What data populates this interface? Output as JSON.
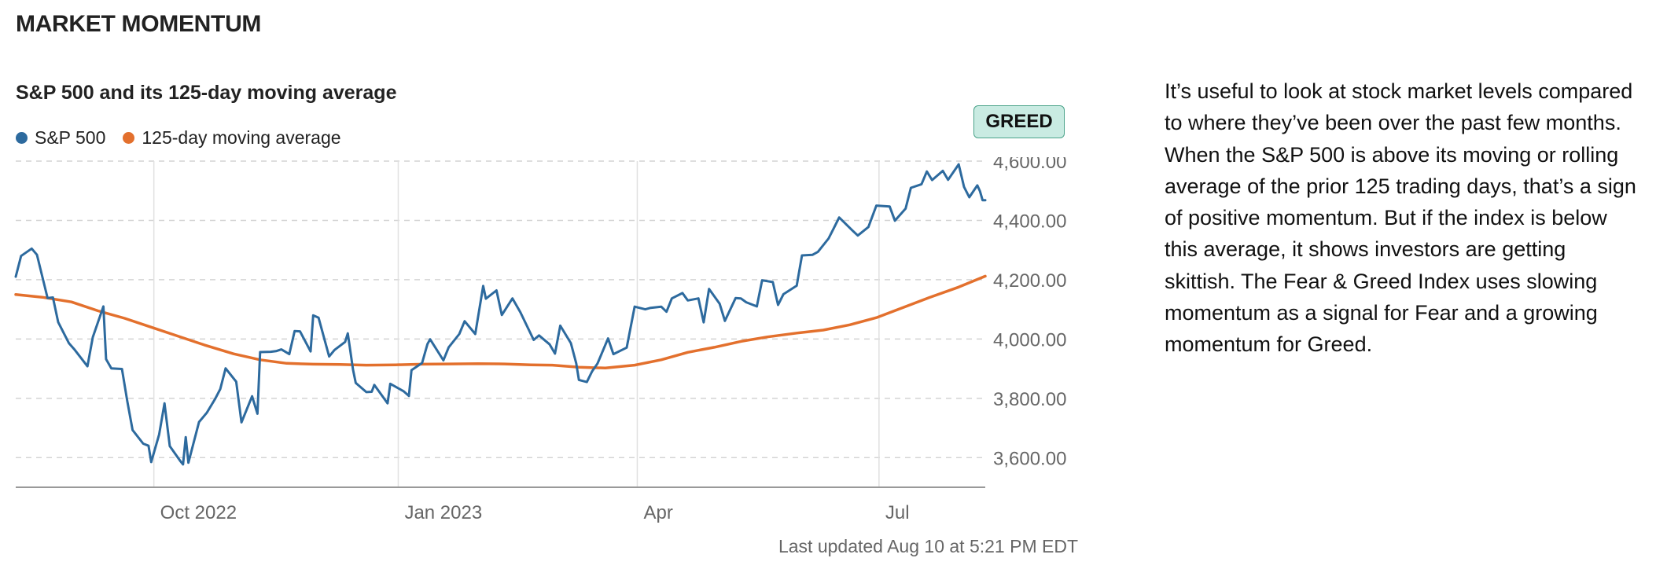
{
  "section_title": "MARKET MOMENTUM",
  "badge": {
    "label": "GREED",
    "color": "#c9ebe2"
  },
  "last_updated": "Last updated Aug 10 at 5:21 PM EDT",
  "description": "It’s useful to look at stock market levels compared to where they’ve been over the past few months. When the S&P 500 is above its moving or rolling average of the prior 125 trading days, that’s a sign of positive momentum. But if the index is below this average, it shows investors are getting skittish. The Fear & Greed Index uses slowing momentum as a signal for Fear and a growing momentum for Greed.",
  "chart_data": {
    "type": "line",
    "title": "S&P 500 and its 125-day moving average",
    "ylim": [
      3500,
      4600
    ],
    "y_ticks": [
      3600,
      3800,
      4000,
      4200,
      4400,
      4600
    ],
    "y_tick_labels": [
      "3,600.00",
      "3,800.00",
      "4,000.00",
      "4,200.00",
      "4,400.00",
      "4,600.00"
    ],
    "x_range": [
      "2022-08-10",
      "2023-08-10"
    ],
    "x_ticks": [
      {
        "date": "2022-10-01",
        "label": "Oct 2022"
      },
      {
        "date": "2023-01-01",
        "label": "Jan 2023"
      },
      {
        "date": "2023-04-01",
        "label": "Apr"
      },
      {
        "date": "2023-07-01",
        "label": "Jul"
      }
    ],
    "grid": true,
    "legend": "top-left",
    "series": [
      {
        "name": "S&P 500",
        "color": "#2d6a9e",
        "points": [
          [
            "2022-08-10",
            4210
          ],
          [
            "2022-08-12",
            4280
          ],
          [
            "2022-08-16",
            4305
          ],
          [
            "2022-08-18",
            4284
          ],
          [
            "2022-08-22",
            4138
          ],
          [
            "2022-08-24",
            4140
          ],
          [
            "2022-08-26",
            4057
          ],
          [
            "2022-08-30",
            3986
          ],
          [
            "2022-09-01",
            3966
          ],
          [
            "2022-09-06",
            3908
          ],
          [
            "2022-09-08",
            4006
          ],
          [
            "2022-09-12",
            4110
          ],
          [
            "2022-09-13",
            3932
          ],
          [
            "2022-09-15",
            3901
          ],
          [
            "2022-09-19",
            3899
          ],
          [
            "2022-09-21",
            3790
          ],
          [
            "2022-09-23",
            3693
          ],
          [
            "2022-09-27",
            3647
          ],
          [
            "2022-09-29",
            3640
          ],
          [
            "2022-09-30",
            3585
          ],
          [
            "2022-10-03",
            3678
          ],
          [
            "2022-10-05",
            3783
          ],
          [
            "2022-10-07",
            3639
          ],
          [
            "2022-10-11",
            3588
          ],
          [
            "2022-10-12",
            3577
          ],
          [
            "2022-10-13",
            3669
          ],
          [
            "2022-10-14",
            3583
          ],
          [
            "2022-10-18",
            3720
          ],
          [
            "2022-10-21",
            3752
          ],
          [
            "2022-10-24",
            3797
          ],
          [
            "2022-10-26",
            3831
          ],
          [
            "2022-10-28",
            3901
          ],
          [
            "2022-11-01",
            3856
          ],
          [
            "2022-11-03",
            3719
          ],
          [
            "2022-11-07",
            3807
          ],
          [
            "2022-11-09",
            3748
          ],
          [
            "2022-11-10",
            3956
          ],
          [
            "2022-11-14",
            3957
          ],
          [
            "2022-11-16",
            3959
          ],
          [
            "2022-11-18",
            3965
          ],
          [
            "2022-11-21",
            3949
          ],
          [
            "2022-11-23",
            4027
          ],
          [
            "2022-11-25",
            4026
          ],
          [
            "2022-11-29",
            3958
          ],
          [
            "2022-11-30",
            4080
          ],
          [
            "2022-12-02",
            4072
          ],
          [
            "2022-12-06",
            3941
          ],
          [
            "2022-12-08",
            3963
          ],
          [
            "2022-12-12",
            3990
          ],
          [
            "2022-12-13",
            4019
          ],
          [
            "2022-12-15",
            3896
          ],
          [
            "2022-12-16",
            3852
          ],
          [
            "2022-12-20",
            3821
          ],
          [
            "2022-12-22",
            3822
          ],
          [
            "2022-12-23",
            3845
          ],
          [
            "2022-12-28",
            3783
          ],
          [
            "2022-12-29",
            3849
          ],
          [
            "2023-01-03",
            3824
          ],
          [
            "2023-01-05",
            3808
          ],
          [
            "2023-01-06",
            3895
          ],
          [
            "2023-01-10",
            3919
          ],
          [
            "2023-01-12",
            3983
          ],
          [
            "2023-01-13",
            3999
          ],
          [
            "2023-01-18",
            3928
          ],
          [
            "2023-01-20",
            3972
          ],
          [
            "2023-01-24",
            4017
          ],
          [
            "2023-01-26",
            4060
          ],
          [
            "2023-01-30",
            4017
          ],
          [
            "2023-02-02",
            4179
          ],
          [
            "2023-02-03",
            4136
          ],
          [
            "2023-02-07",
            4164
          ],
          [
            "2023-02-09",
            4081
          ],
          [
            "2023-02-13",
            4137
          ],
          [
            "2023-02-16",
            4090
          ],
          [
            "2023-02-21",
            3997
          ],
          [
            "2023-02-23",
            4012
          ],
          [
            "2023-02-27",
            3982
          ],
          [
            "2023-03-01",
            3951
          ],
          [
            "2023-03-03",
            4045
          ],
          [
            "2023-03-07",
            3986
          ],
          [
            "2023-03-09",
            3918
          ],
          [
            "2023-03-10",
            3862
          ],
          [
            "2023-03-13",
            3855
          ],
          [
            "2023-03-15",
            3891
          ],
          [
            "2023-03-17",
            3917
          ],
          [
            "2023-03-21",
            4002
          ],
          [
            "2023-03-23",
            3949
          ],
          [
            "2023-03-28",
            3971
          ],
          [
            "2023-03-31",
            4109
          ],
          [
            "2023-04-04",
            4100
          ],
          [
            "2023-04-06",
            4105
          ],
          [
            "2023-04-10",
            4109
          ],
          [
            "2023-04-12",
            4092
          ],
          [
            "2023-04-14",
            4137
          ],
          [
            "2023-04-18",
            4155
          ],
          [
            "2023-04-20",
            4130
          ],
          [
            "2023-04-24",
            4137
          ],
          [
            "2023-04-26",
            4056
          ],
          [
            "2023-04-28",
            4169
          ],
          [
            "2023-05-02",
            4119
          ],
          [
            "2023-05-04",
            4061
          ],
          [
            "2023-05-08",
            4138
          ],
          [
            "2023-05-10",
            4137
          ],
          [
            "2023-05-12",
            4124
          ],
          [
            "2023-05-16",
            4110
          ],
          [
            "2023-05-18",
            4198
          ],
          [
            "2023-05-22",
            4192
          ],
          [
            "2023-05-24",
            4115
          ],
          [
            "2023-05-26",
            4151
          ],
          [
            "2023-05-31",
            4180
          ],
          [
            "2023-06-02",
            4282
          ],
          [
            "2023-06-06",
            4284
          ],
          [
            "2023-06-08",
            4294
          ],
          [
            "2023-06-12",
            4339
          ],
          [
            "2023-06-14",
            4374
          ],
          [
            "2023-06-16",
            4410
          ],
          [
            "2023-06-21",
            4366
          ],
          [
            "2023-06-23",
            4349
          ],
          [
            "2023-06-27",
            4378
          ],
          [
            "2023-06-30",
            4450
          ],
          [
            "2023-07-05",
            4447
          ],
          [
            "2023-07-07",
            4399
          ],
          [
            "2023-07-11",
            4440
          ],
          [
            "2023-07-13",
            4510
          ],
          [
            "2023-07-17",
            4522
          ],
          [
            "2023-07-19",
            4565
          ],
          [
            "2023-07-21",
            4536
          ],
          [
            "2023-07-25",
            4567
          ],
          [
            "2023-07-27",
            4537
          ],
          [
            "2023-07-31",
            4589
          ],
          [
            "2023-08-02",
            4513
          ],
          [
            "2023-08-04",
            4478
          ],
          [
            "2023-08-07",
            4518
          ],
          [
            "2023-08-08",
            4499
          ],
          [
            "2023-08-09",
            4468
          ],
          [
            "2023-08-10",
            4468
          ]
        ]
      },
      {
        "name": "125-day moving average",
        "color": "#e3702d",
        "points": [
          [
            "2022-08-10",
            4150
          ],
          [
            "2022-08-20",
            4141
          ],
          [
            "2022-08-31",
            4125
          ],
          [
            "2022-09-10",
            4095
          ],
          [
            "2022-09-20",
            4070
          ],
          [
            "2022-09-30",
            4040
          ],
          [
            "2022-10-10",
            4010
          ],
          [
            "2022-10-20",
            3980
          ],
          [
            "2022-10-31",
            3950
          ],
          [
            "2022-11-10",
            3930
          ],
          [
            "2022-11-20",
            3918
          ],
          [
            "2022-11-30",
            3915
          ],
          [
            "2022-12-10",
            3914
          ],
          [
            "2022-12-20",
            3912
          ],
          [
            "2022-12-31",
            3913
          ],
          [
            "2023-01-10",
            3915
          ],
          [
            "2023-01-20",
            3916
          ],
          [
            "2023-01-31",
            3917
          ],
          [
            "2023-02-10",
            3916
          ],
          [
            "2023-02-20",
            3913
          ],
          [
            "2023-02-28",
            3912
          ],
          [
            "2023-03-10",
            3905
          ],
          [
            "2023-03-20",
            3902
          ],
          [
            "2023-03-31",
            3912
          ],
          [
            "2023-04-10",
            3930
          ],
          [
            "2023-04-20",
            3955
          ],
          [
            "2023-04-30",
            3972
          ],
          [
            "2023-05-10",
            3992
          ],
          [
            "2023-05-20",
            4007
          ],
          [
            "2023-05-31",
            4020
          ],
          [
            "2023-06-10",
            4030
          ],
          [
            "2023-06-20",
            4048
          ],
          [
            "2023-06-30",
            4072
          ],
          [
            "2023-07-10",
            4106
          ],
          [
            "2023-07-20",
            4140
          ],
          [
            "2023-07-31",
            4175
          ],
          [
            "2023-08-10",
            4212
          ]
        ]
      }
    ]
  }
}
